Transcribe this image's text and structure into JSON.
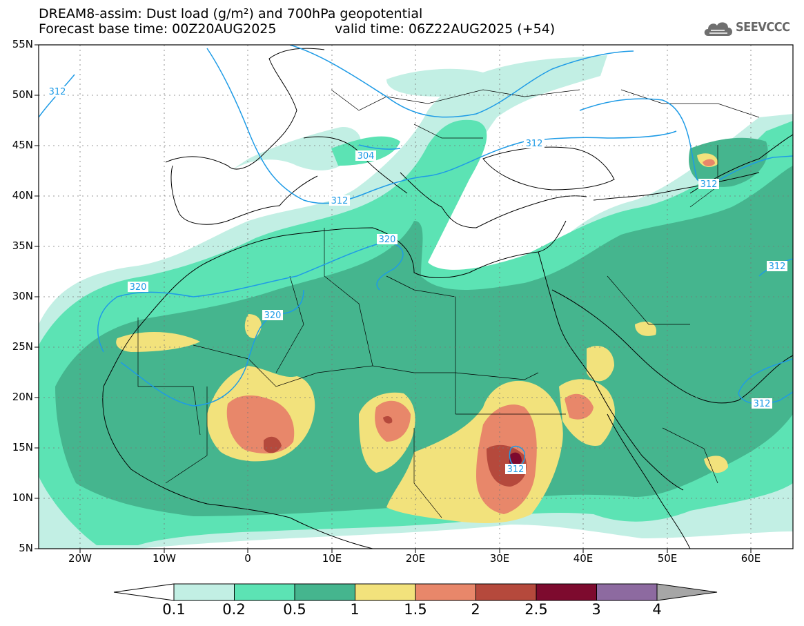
{
  "title": {
    "line1": "DREAM8-assim: Dust load (g/m²) and 700hPa geopotential",
    "line2_left": "Forecast base time: 00Z20AUG2025",
    "line2_right": "valid time: 06Z22AUG2025 (+54)"
  },
  "logo": {
    "text": "SEEVCCC",
    "icon": "cloud-icon"
  },
  "map": {
    "lat_labels": [
      "55N",
      "50N",
      "45N",
      "40N",
      "35N",
      "30N",
      "25N",
      "20N",
      "15N",
      "10N",
      "5N"
    ],
    "lon_labels": [
      "20W",
      "10W",
      "0",
      "10E",
      "20E",
      "30E",
      "40E",
      "50E",
      "60E"
    ],
    "contour_labels": [
      "312",
      "304",
      "312",
      "312",
      "320",
      "320",
      "320",
      "312",
      "312",
      "312",
      "312"
    ],
    "contour_color": "#1e9be6"
  },
  "colorbar": {
    "labels": [
      "0.1",
      "0.2",
      "0.5",
      "1",
      "1.5",
      "2",
      "2.5",
      "3",
      "4"
    ],
    "colors": [
      "#c2efe4",
      "#5ce3b4",
      "#45b58e",
      "#f2e27c",
      "#e8876a",
      "#b5493c",
      "#7d0a2e",
      "#8d6aa0",
      "#a6a6a6"
    ],
    "under_color": "#ffffff"
  }
}
